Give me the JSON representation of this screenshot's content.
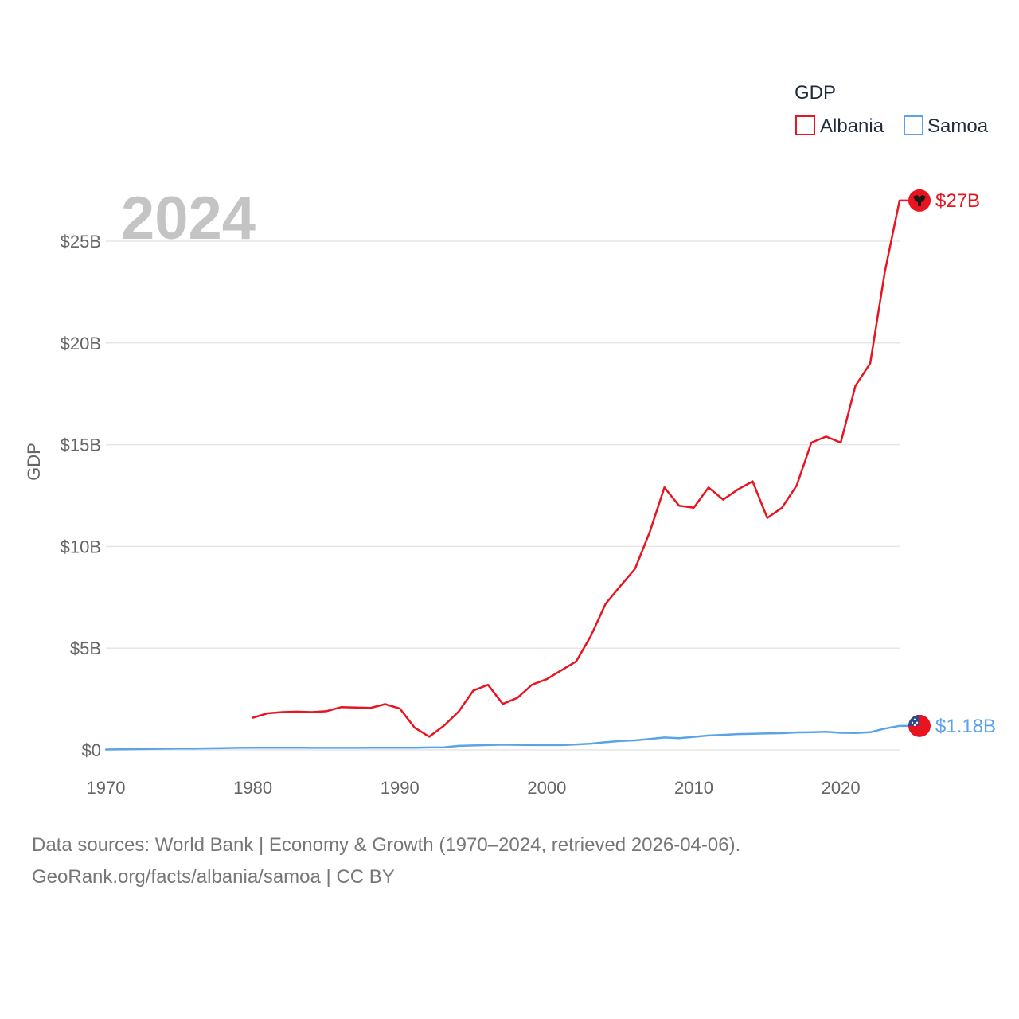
{
  "legend": {
    "title": "GDP"
  },
  "year_label": "2024",
  "footer": {
    "line1": "Data sources: World Bank | Economy & Growth (1970–2024, retrieved 2026-04-06).",
    "line2": "GeoRank.org/facts/albania/samoa | CC BY"
  },
  "colors": {
    "albania": "#e8141f",
    "samoa": "#5aa3e8",
    "grid": "#e6e6e6",
    "axis": "#666666"
  },
  "chart_data": {
    "type": "line",
    "title": "GDP",
    "xlabel": "",
    "ylabel": "GDP",
    "xlim": [
      1970,
      2024
    ],
    "ylim": [
      0,
      27
    ],
    "x_ticks": [
      1970,
      1980,
      1990,
      2000,
      2010,
      2020
    ],
    "x_tick_labels": [
      "1970",
      "1980",
      "1990",
      "2000",
      "2010",
      "2020"
    ],
    "y_ticks": [
      0,
      5,
      10,
      15,
      20,
      25
    ],
    "y_tick_labels": [
      "$0",
      "$5B",
      "$10B",
      "$15B",
      "$20B",
      "$25B"
    ],
    "legend_position": "top-right",
    "series": [
      {
        "name": "Albania",
        "color": "#e8141f",
        "end_label": "$27B",
        "x": [
          1980,
          1981,
          1982,
          1983,
          1984,
          1985,
          1986,
          1987,
          1988,
          1989,
          1990,
          1991,
          1992,
          1993,
          1994,
          1995,
          1996,
          1997,
          1998,
          1999,
          2000,
          2001,
          2002,
          2003,
          2004,
          2005,
          2006,
          2007,
          2008,
          2009,
          2010,
          2011,
          2012,
          2013,
          2014,
          2015,
          2016,
          2017,
          2018,
          2019,
          2020,
          2021,
          2022,
          2023,
          2024
        ],
        "values": [
          1.58,
          1.8,
          1.86,
          1.88,
          1.86,
          1.9,
          2.1,
          2.08,
          2.06,
          2.25,
          2.03,
          1.1,
          0.65,
          1.19,
          1.88,
          2.92,
          3.2,
          2.26,
          2.56,
          3.21,
          3.48,
          3.92,
          4.35,
          5.61,
          7.18,
          8.05,
          8.9,
          10.7,
          12.9,
          12.0,
          11.9,
          12.9,
          12.3,
          12.8,
          13.2,
          11.4,
          11.9,
          13.0,
          15.1,
          15.4,
          15.1,
          17.9,
          19.0,
          23.5,
          27.0
        ]
      },
      {
        "name": "Samoa",
        "color": "#5aa3e8",
        "end_label": "$1.18B",
        "x": [
          1970,
          1971,
          1972,
          1973,
          1974,
          1975,
          1976,
          1977,
          1978,
          1979,
          1980,
          1981,
          1982,
          1983,
          1984,
          1985,
          1986,
          1987,
          1988,
          1989,
          1990,
          1991,
          1992,
          1993,
          1994,
          1995,
          1996,
          1997,
          1998,
          1999,
          2000,
          2001,
          2002,
          2003,
          2004,
          2005,
          2006,
          2007,
          2008,
          2009,
          2010,
          2011,
          2012,
          2013,
          2014,
          2015,
          2016,
          2017,
          2018,
          2019,
          2020,
          2021,
          2022,
          2023,
          2024
        ],
        "values": [
          0.02,
          0.03,
          0.04,
          0.05,
          0.06,
          0.07,
          0.07,
          0.08,
          0.09,
          0.1,
          0.11,
          0.11,
          0.11,
          0.11,
          0.1,
          0.1,
          0.1,
          0.1,
          0.11,
          0.11,
          0.11,
          0.11,
          0.12,
          0.13,
          0.2,
          0.22,
          0.24,
          0.26,
          0.25,
          0.24,
          0.24,
          0.24,
          0.27,
          0.31,
          0.38,
          0.44,
          0.47,
          0.54,
          0.61,
          0.58,
          0.64,
          0.71,
          0.74,
          0.78,
          0.79,
          0.81,
          0.82,
          0.86,
          0.87,
          0.89,
          0.84,
          0.83,
          0.87,
          1.05,
          1.18
        ]
      }
    ]
  }
}
